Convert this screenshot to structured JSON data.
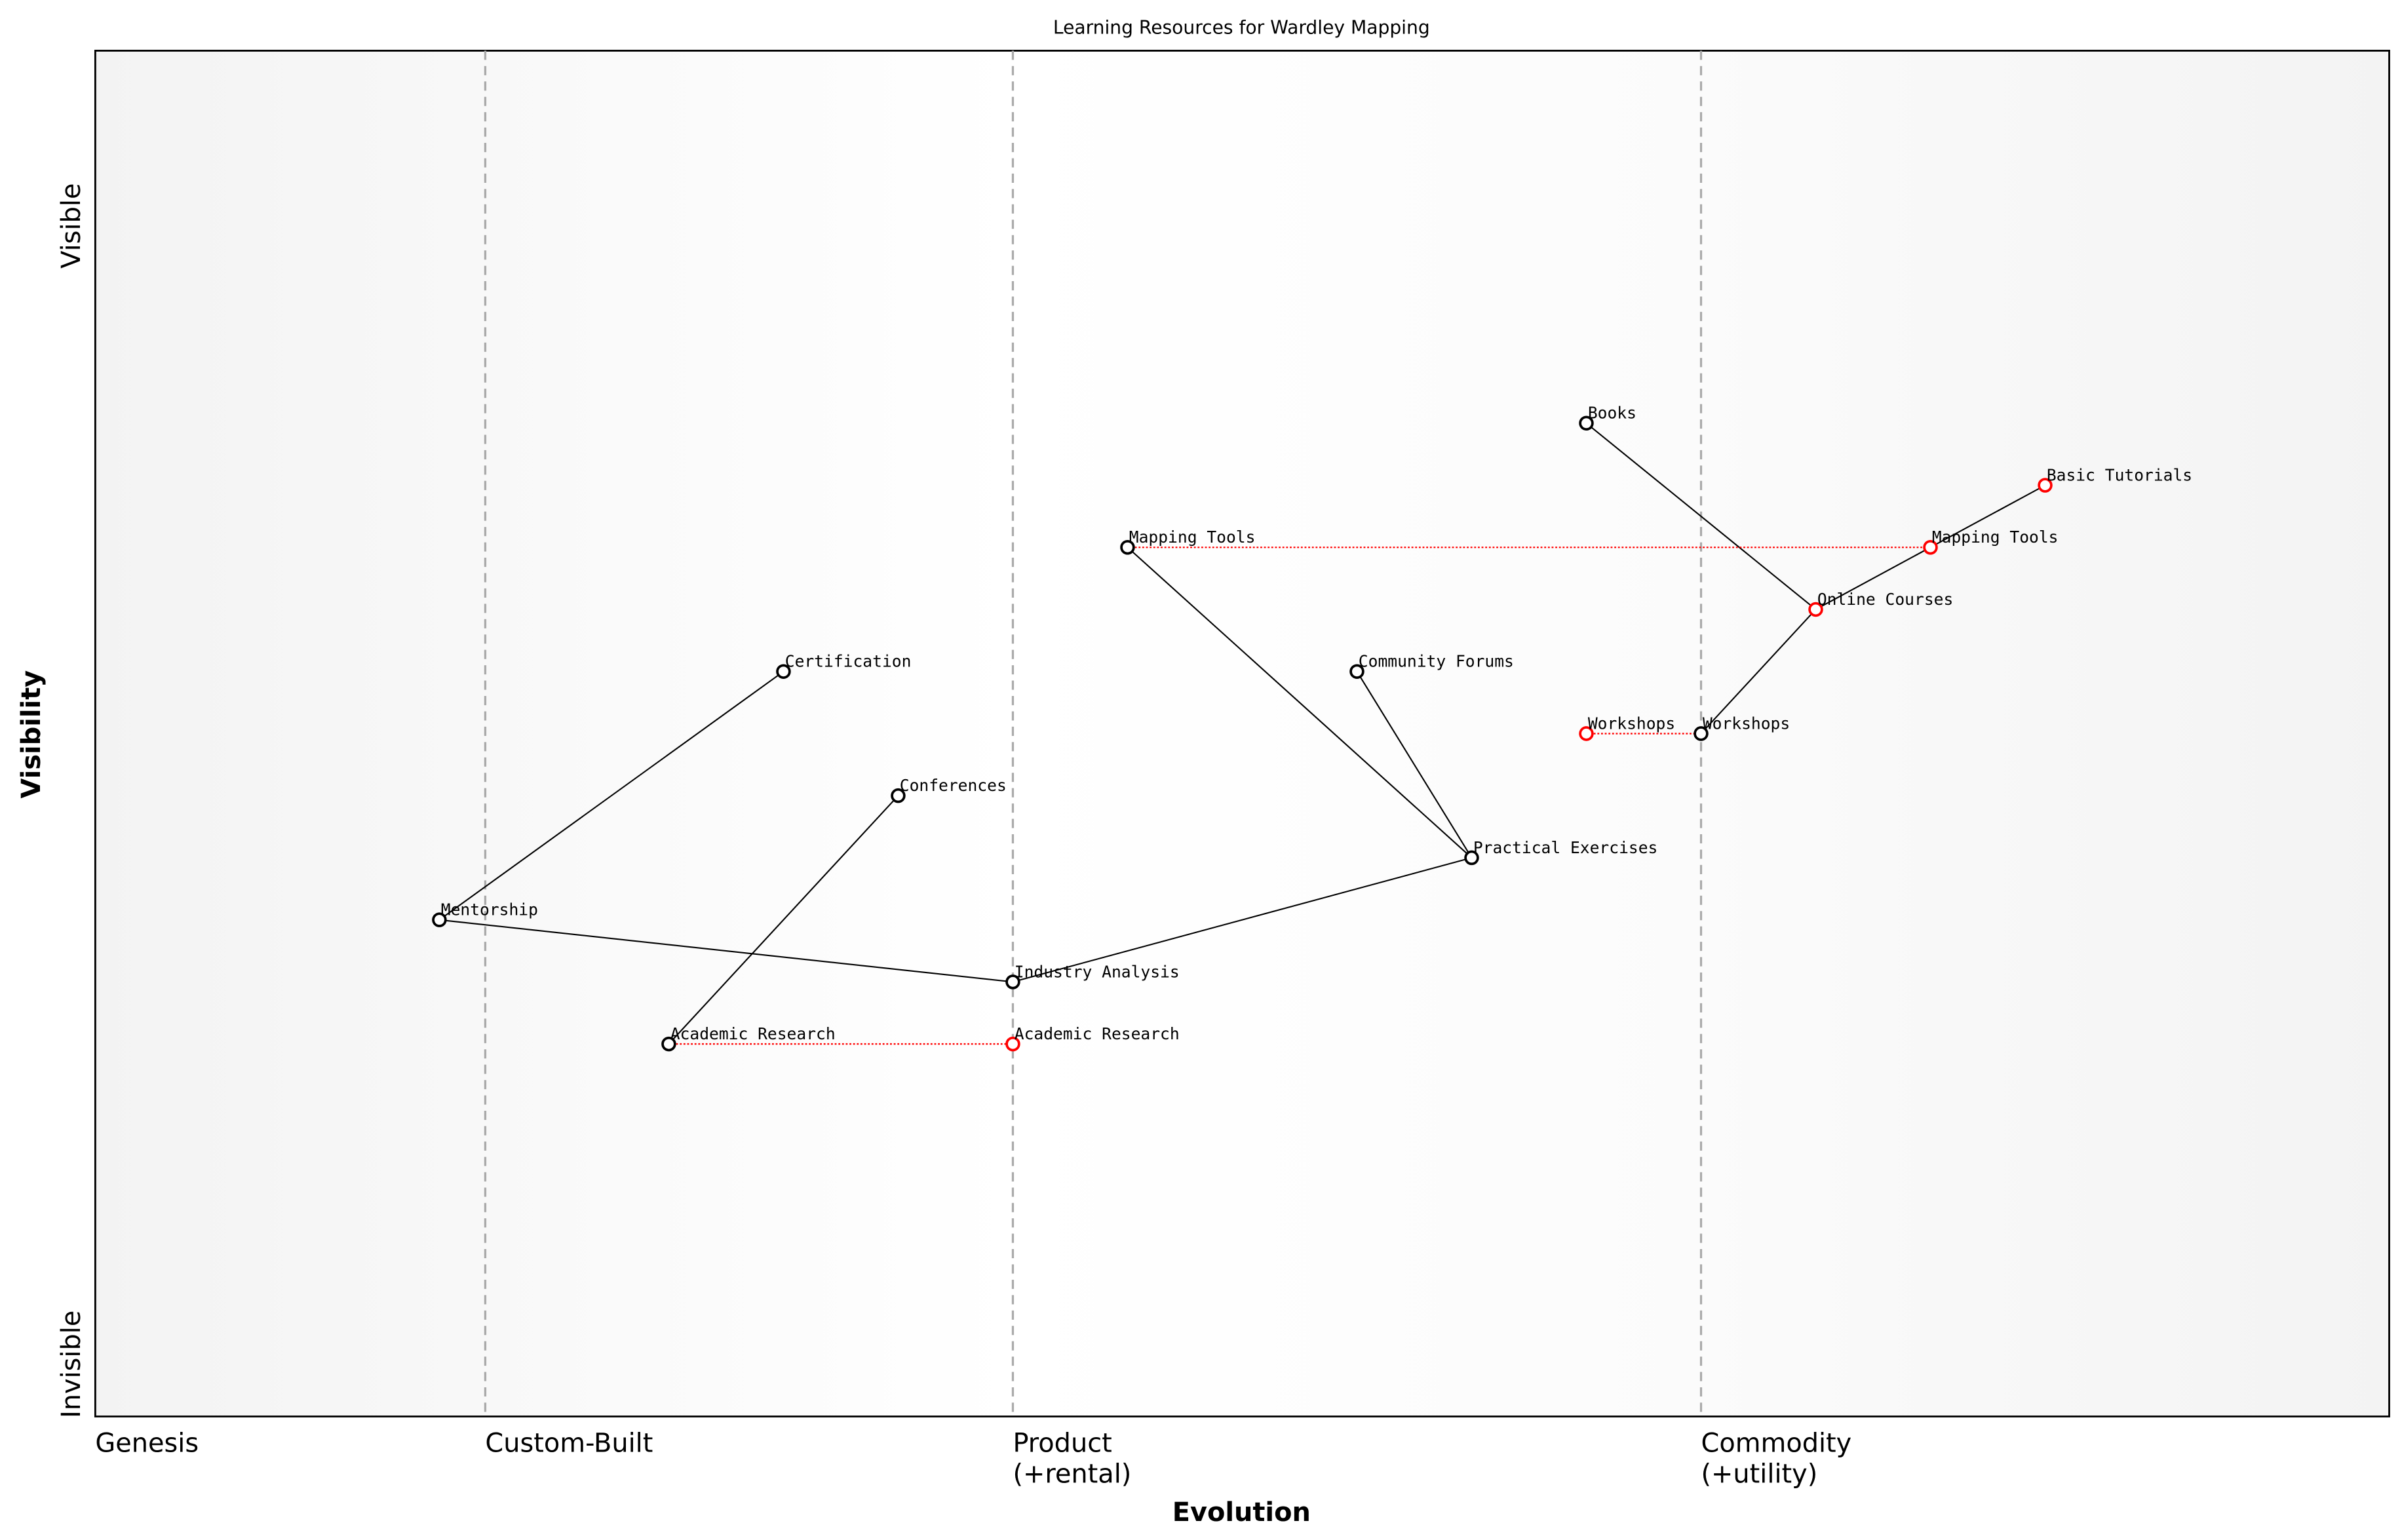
{
  "chart_data": {
    "type": "scatter",
    "title": "Learning Resources for Wardley Mapping",
    "xlabel": "Evolution",
    "ylabel": "Visibility",
    "xlim": [
      0,
      1
    ],
    "ylim": [
      0,
      1.1
    ],
    "grid": false,
    "x_stages": [
      {
        "label": "Genesis",
        "x": 0.0
      },
      {
        "label": "Custom-Built",
        "x": 0.17
      },
      {
        "label": "Product",
        "label2": "(+rental)",
        "x": 0.4
      },
      {
        "label": "Commodity",
        "label2": "(+utility)",
        "x": 0.7
      }
    ],
    "y_labels": {
      "top": "Visible",
      "bottom": "Invisible"
    },
    "stage_line_color": "#aaaaaa",
    "node_color": "#000000",
    "evolved_color": "#ff0000",
    "nodes": [
      {
        "id": "books",
        "label": "Books",
        "x": 0.65,
        "y": 0.8,
        "evolved": false
      },
      {
        "id": "basic",
        "label": "Basic Tutorials",
        "x": 0.85,
        "y": 0.75,
        "evolved": true
      },
      {
        "id": "maptools",
        "label": "Mapping Tools",
        "x": 0.45,
        "y": 0.7,
        "evolved": false
      },
      {
        "id": "maptools_e",
        "label": "Mapping Tools",
        "x": 0.8,
        "y": 0.7,
        "evolved": true
      },
      {
        "id": "online",
        "label": "Online Courses",
        "x": 0.75,
        "y": 0.65,
        "evolved": true
      },
      {
        "id": "cert",
        "label": "Certification",
        "x": 0.3,
        "y": 0.6,
        "evolved": false
      },
      {
        "id": "forums",
        "label": "Community Forums",
        "x": 0.55,
        "y": 0.6,
        "evolved": false
      },
      {
        "id": "workshops_e",
        "label": "Workshops",
        "x": 0.65,
        "y": 0.55,
        "evolved": true
      },
      {
        "id": "workshops",
        "label": "Workshops",
        "x": 0.7,
        "y": 0.55,
        "evolved": false
      },
      {
        "id": "conf",
        "label": "Conferences",
        "x": 0.35,
        "y": 0.5,
        "evolved": false
      },
      {
        "id": "practical",
        "label": "Practical Exercises",
        "x": 0.6,
        "y": 0.45,
        "evolved": false
      },
      {
        "id": "mentor",
        "label": "Mentorship",
        "x": 0.15,
        "y": 0.4,
        "evolved": false
      },
      {
        "id": "industry",
        "label": "Industry Analysis",
        "x": 0.4,
        "y": 0.35,
        "evolved": false
      },
      {
        "id": "academic",
        "label": "Academic Research",
        "x": 0.25,
        "y": 0.3,
        "evolved": false
      },
      {
        "id": "academic_e",
        "label": "Academic Research",
        "x": 0.4,
        "y": 0.3,
        "evolved": true
      }
    ],
    "links": [
      [
        "books",
        "online"
      ],
      [
        "online",
        "maptools_e"
      ],
      [
        "maptools_e",
        "basic"
      ],
      [
        "online",
        "workshops"
      ],
      [
        "maptools",
        "practical"
      ],
      [
        "forums",
        "practical"
      ],
      [
        "practical",
        "industry"
      ],
      [
        "industry",
        "mentor"
      ],
      [
        "mentor",
        "cert"
      ],
      [
        "conf",
        "academic"
      ]
    ],
    "evolution_links": [
      [
        "maptools",
        "maptools_e"
      ],
      [
        "workshops_e",
        "workshops"
      ],
      [
        "academic",
        "academic_e"
      ]
    ]
  }
}
